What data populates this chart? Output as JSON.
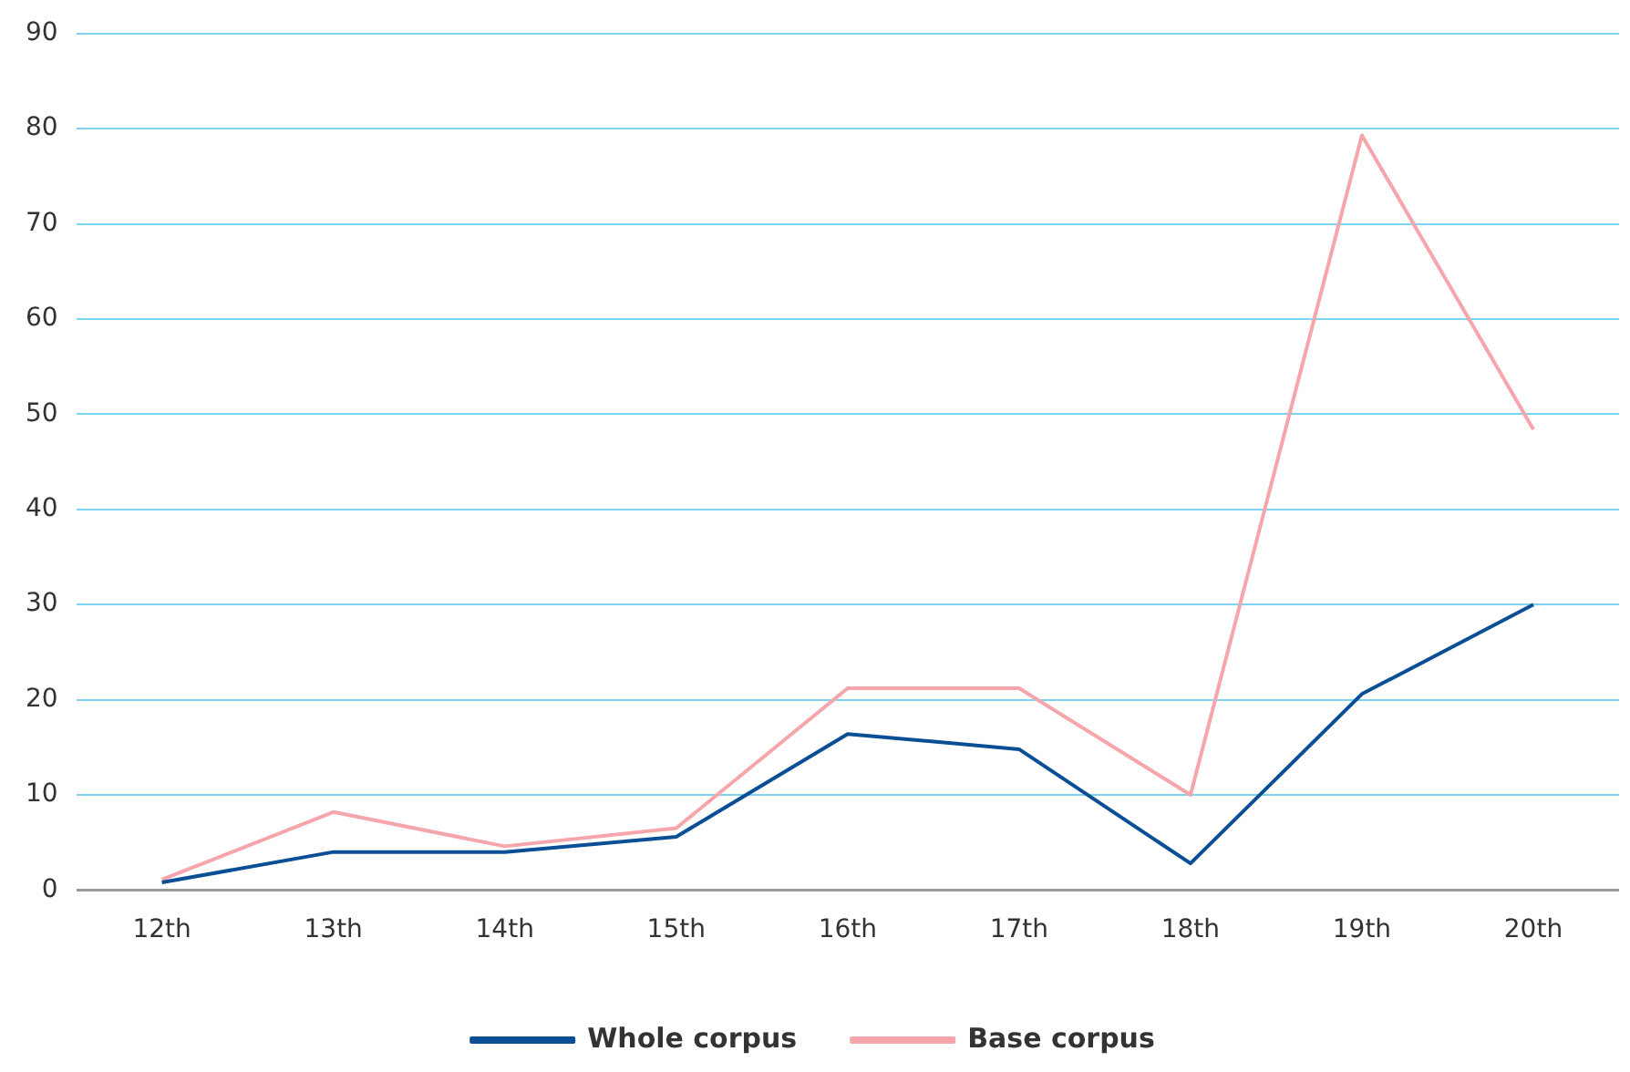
{
  "chart_data": {
    "type": "line",
    "categories": [
      "12th",
      "13th",
      "14th",
      "15th",
      "16th",
      "17th",
      "18th",
      "19th",
      "20th"
    ],
    "series": [
      {
        "name": "Whole corpus",
        "color": "#0a4f96",
        "values": [
          0.8,
          4,
          4,
          5.6,
          16.4,
          14.8,
          2.8,
          20.6,
          30
        ]
      },
      {
        "name": "Base corpus",
        "color": "#f6a6ab",
        "values": [
          1.1,
          8.2,
          4.6,
          6.5,
          21.2,
          21.2,
          10,
          79.3,
          48.4
        ]
      }
    ],
    "ylim": [
      0,
      90
    ],
    "yticks": [
      0,
      10,
      20,
      30,
      40,
      50,
      60,
      70,
      80,
      90
    ],
    "grid": "y",
    "legend": "bottom",
    "marker": "none",
    "line_style": "solid"
  }
}
